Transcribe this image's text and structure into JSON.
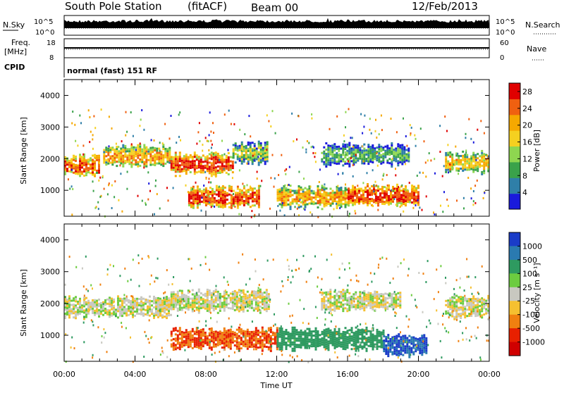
{
  "header": {
    "station": "South Pole Station",
    "mode": "(fitACF)",
    "beam": "Beam 00",
    "date": "12/Feb/2013"
  },
  "strip": {
    "nsky_label": "N.Sky",
    "nsky_high": "10^5",
    "nsky_low": "10^0",
    "nsearch_label": "N.Search",
    "nsearch_high": "10^5",
    "nsearch_low": "10^0",
    "freq_label": "Freq.",
    "freq_unit": "[MHz]",
    "freq_high": "18",
    "freq_low": "8",
    "nave_label": "Nave",
    "nave_high": "60",
    "nave_low": "0",
    "cpid_label": "CPID",
    "cpid_value": "normal (fast) 151 RF"
  },
  "chart_data": [
    {
      "type": "heatmap",
      "panel": "power",
      "ylabel": "Slant Range [km]",
      "xlabel": "Time UT",
      "xticks": [
        "00:00",
        "04:00",
        "08:00",
        "12:00",
        "16:00",
        "20:00",
        "00:00"
      ],
      "xlim_hours": [
        0,
        24
      ],
      "yticks": [
        "1000",
        "2000",
        "3000",
        "4000"
      ],
      "ylim": [
        180,
        4500
      ],
      "colorbar_label": "Power [dB]",
      "colorbar_ticks": [
        "4",
        "8",
        "12",
        "16",
        "20",
        "24",
        "28"
      ],
      "colorbar_range": [
        0,
        30
      ],
      "colors": [
        "#1a1adc",
        "#2f7fa8",
        "#3aa24a",
        "#8ed650",
        "#f5d020",
        "#f6a800",
        "#f06010",
        "#e00000"
      ],
      "bands": [
        {
          "from_hour": 0.0,
          "to_hour": 2.0,
          "range_km": 1800,
          "value": 24
        },
        {
          "from_hour": 2.2,
          "to_hour": 6.0,
          "range_km": 2100,
          "value": 20
        },
        {
          "from_hour": 6.0,
          "to_hour": 9.5,
          "range_km": 1850,
          "value": 26
        },
        {
          "from_hour": 9.5,
          "to_hour": 11.5,
          "range_km": 2200,
          "value": 14
        },
        {
          "from_hour": 7.0,
          "to_hour": 11.0,
          "range_km": 800,
          "value": 26
        },
        {
          "from_hour": 12.0,
          "to_hour": 16.0,
          "range_km": 800,
          "value": 20
        },
        {
          "from_hour": 14.5,
          "to_hour": 19.5,
          "range_km": 2150,
          "value": 10
        },
        {
          "from_hour": 16.0,
          "to_hour": 20.0,
          "range_km": 850,
          "value": 26
        },
        {
          "from_hour": 21.5,
          "to_hour": 24.0,
          "range_km": 1900,
          "value": 18
        }
      ]
    },
    {
      "type": "heatmap",
      "panel": "velocity",
      "ylabel": "Slant Range [km]",
      "xlabel": "Time UT",
      "xticks": [
        "00:00",
        "04:00",
        "08:00",
        "12:00",
        "16:00",
        "20:00",
        "00:00"
      ],
      "xlim_hours": [
        0,
        24
      ],
      "yticks": [
        "1000",
        "2000",
        "3000",
        "4000"
      ],
      "ylim": [
        180,
        4500
      ],
      "colorbar_label": "Velocity [m s⁻¹]",
      "colorbar_ticks": [
        "1000",
        "500",
        "100",
        "25",
        "-25",
        "-100",
        "-500",
        "-1000"
      ],
      "colors": [
        "#1a3cc8",
        "#2a7ab0",
        "#2e9a60",
        "#6ccc40",
        "#c8c8c0",
        "#f5c030",
        "#f08010",
        "#e82000",
        "#d00000"
      ],
      "bands": [
        {
          "from_hour": 0.0,
          "to_hour": 6.0,
          "range_km": 1900,
          "value": 0
        },
        {
          "from_hour": 6.0,
          "to_hour": 11.5,
          "range_km": 2100,
          "value": 0
        },
        {
          "from_hour": 6.0,
          "to_hour": 12.0,
          "range_km": 900,
          "value": -500
        },
        {
          "from_hour": 12.0,
          "to_hour": 18.0,
          "range_km": 900,
          "value": 300
        },
        {
          "from_hour": 18.0,
          "to_hour": 20.5,
          "range_km": 700,
          "value": 1000
        },
        {
          "from_hour": 14.5,
          "to_hour": 19.0,
          "range_km": 2100,
          "value": 0
        },
        {
          "from_hour": 21.5,
          "to_hour": 24.0,
          "range_km": 1900,
          "value": 0
        }
      ]
    }
  ]
}
